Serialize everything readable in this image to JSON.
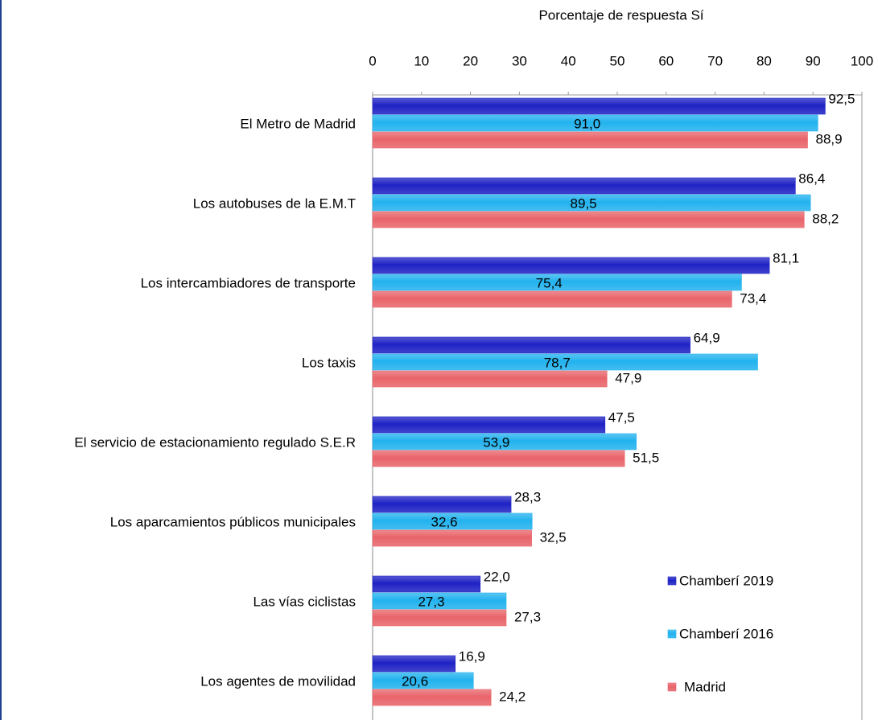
{
  "chart_data": {
    "type": "hbar",
    "x_label": "Porcentaje de respuesta Sí",
    "categories": [
      "El Metro de Madrid",
      "Los autobuses de la E.M.T",
      "Los intercambiadores de transporte",
      "Los taxis",
      "El servicio de estacionamiento regulado S.E.R",
      "Los aparcamientos públicos municipales",
      "Las vías ciclistas",
      "Los agentes de movilidad"
    ],
    "series": [
      {
        "name": "Chamberí 2019",
        "color": "#1f22c4",
        "values": [
          92.5,
          86.4,
          81.1,
          64.9,
          47.5,
          28.3,
          22.0,
          16.9
        ],
        "value_labels": [
          "92,5",
          "86,4",
          "81,1",
          "64,9",
          "47,5",
          "28,3",
          "22,0",
          "16,9"
        ]
      },
      {
        "name": "Chamberí 2016",
        "color": "#22b2ee",
        "values": [
          91.0,
          89.5,
          75.4,
          78.7,
          53.9,
          32.6,
          27.3,
          20.6
        ],
        "value_labels": [
          "91,0",
          "89,5",
          "75,4",
          "78,7",
          "53,9",
          "32,6",
          "27,3",
          "20,6"
        ]
      },
      {
        "name": "Madrid",
        "color": "#e8646a",
        "values": [
          88.9,
          88.2,
          73.4,
          47.9,
          51.5,
          32.5,
          27.3,
          24.2
        ],
        "value_labels": [
          "88,9",
          "88,2",
          "73,4",
          "47,9",
          "51,5",
          "32,5",
          "27,3",
          "24,2"
        ]
      }
    ],
    "xlim": [
      0,
      100
    ],
    "xticks": [
      0,
      10,
      20,
      30,
      40,
      50,
      60,
      70,
      80,
      90,
      100
    ],
    "legend": "lower right"
  }
}
